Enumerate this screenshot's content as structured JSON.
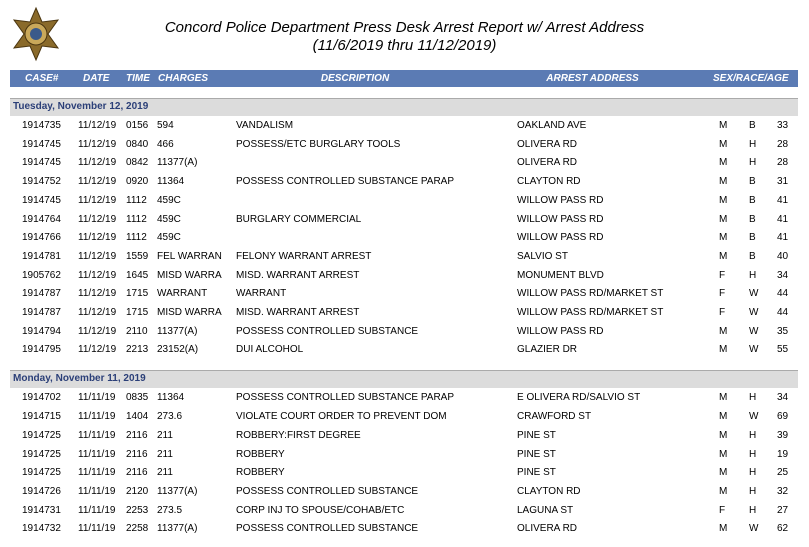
{
  "header": {
    "title": "Concord Police Department Press Desk Arrest Report w/ Arrest Address",
    "subtitle": "(11/6/2019 thru 11/12/2019)"
  },
  "table": {
    "columns": [
      "CASE#",
      "DATE",
      "TIME",
      "CHARGES",
      "DESCRIPTION",
      "ARREST ADDRESS",
      "SEX/RACE/AGE"
    ],
    "sections": [
      {
        "label": "Tuesday, November 12, 2019",
        "rows": [
          [
            "1914735",
            "11/12/19",
            "0156",
            "594",
            "VANDALISM",
            "OAKLAND AVE",
            "M",
            "B",
            "33"
          ],
          [
            "1914745",
            "11/12/19",
            "0840",
            "466",
            "POSSESS/ETC BURGLARY TOOLS",
            "OLIVERA RD",
            "M",
            "H",
            "28"
          ],
          [
            "1914745",
            "11/12/19",
            "0842",
            "11377(A)",
            null,
            "OLIVERA RD",
            "M",
            "H",
            "28"
          ],
          [
            "1914752",
            "11/12/19",
            "0920",
            "11364",
            "POSSESS CONTROLLED SUBSTANCE PARAP",
            "CLAYTON RD",
            "M",
            "B",
            "31"
          ],
          [
            "1914745",
            "11/12/19",
            "1112",
            "459C",
            null,
            "WILLOW PASS RD",
            "M",
            "B",
            "41"
          ],
          [
            "1914764",
            "11/12/19",
            "1112",
            "459C",
            "BURGLARY COMMERCIAL",
            "WILLOW PASS RD",
            "M",
            "B",
            "41"
          ],
          [
            "1914766",
            "11/12/19",
            "1112",
            "459C",
            null,
            "WILLOW PASS RD",
            "M",
            "B",
            "41"
          ],
          [
            "1914781",
            "11/12/19",
            "1559",
            "FEL WARRAN",
            "FELONY WARRANT ARREST",
            "SALVIO ST",
            "M",
            "B",
            "40"
          ],
          [
            "1905762",
            "11/12/19",
            "1645",
            "MISD WARRA",
            "MISD. WARRANT ARREST",
            "MONUMENT BLVD",
            "F",
            "H",
            "34"
          ],
          [
            "1914787",
            "11/12/19",
            "1715",
            "WARRANT",
            "WARRANT",
            "WILLOW PASS RD/MARKET ST",
            "F",
            "W",
            "44"
          ],
          [
            "1914787",
            "11/12/19",
            "1715",
            "MISD WARRA",
            "MISD. WARRANT ARREST",
            "WILLOW PASS RD/MARKET ST",
            "F",
            "W",
            "44"
          ],
          [
            "1914794",
            "11/12/19",
            "2110",
            "11377(A)",
            "POSSESS CONTROLLED SUBSTANCE",
            "WILLOW PASS RD",
            "M",
            "W",
            "35"
          ],
          [
            "1914795",
            "11/12/19",
            "2213",
            "23152(A)",
            "DUI ALCOHOL",
            "GLAZIER DR",
            "M",
            "W",
            "55"
          ]
        ]
      },
      {
        "label": "Monday, November 11, 2019",
        "rows": [
          [
            "1914702",
            "11/11/19",
            "0835",
            "11364",
            "POSSESS CONTROLLED SUBSTANCE PARAP",
            "E OLIVERA RD/SALVIO ST",
            "M",
            "H",
            "34"
          ],
          [
            "1914715",
            "11/11/19",
            "1404",
            "273.6",
            "VIOLATE COURT ORDER TO PREVENT DOM",
            "CRAWFORD ST",
            "M",
            "W",
            "69"
          ],
          [
            "1914725",
            "11/11/19",
            "2116",
            "211",
            "ROBBERY:FIRST DEGREE",
            "PINE ST",
            "M",
            "H",
            "39"
          ],
          [
            "1914725",
            "11/11/19",
            "2116",
            "211",
            "ROBBERY",
            "PINE ST",
            "M",
            "H",
            "19"
          ],
          [
            "1914725",
            "11/11/19",
            "2116",
            "211",
            "ROBBERY",
            "PINE ST",
            "M",
            "H",
            "25"
          ],
          [
            "1914726",
            "11/11/19",
            "2120",
            "11377(A)",
            "POSSESS CONTROLLED SUBSTANCE",
            "CLAYTON RD",
            "M",
            "H",
            "32"
          ],
          [
            "1914731",
            "11/11/19",
            "2253",
            "273.5",
            "CORP INJ TO SPOUSE/COHAB/ETC",
            "LAGUNA ST",
            "F",
            "H",
            "27"
          ],
          [
            "1914732",
            "11/11/19",
            "2258",
            "11377(A)",
            "POSSESS CONTROLLED SUBSTANCE",
            "OLIVERA RD",
            "M",
            "W",
            "62"
          ]
        ]
      }
    ]
  }
}
